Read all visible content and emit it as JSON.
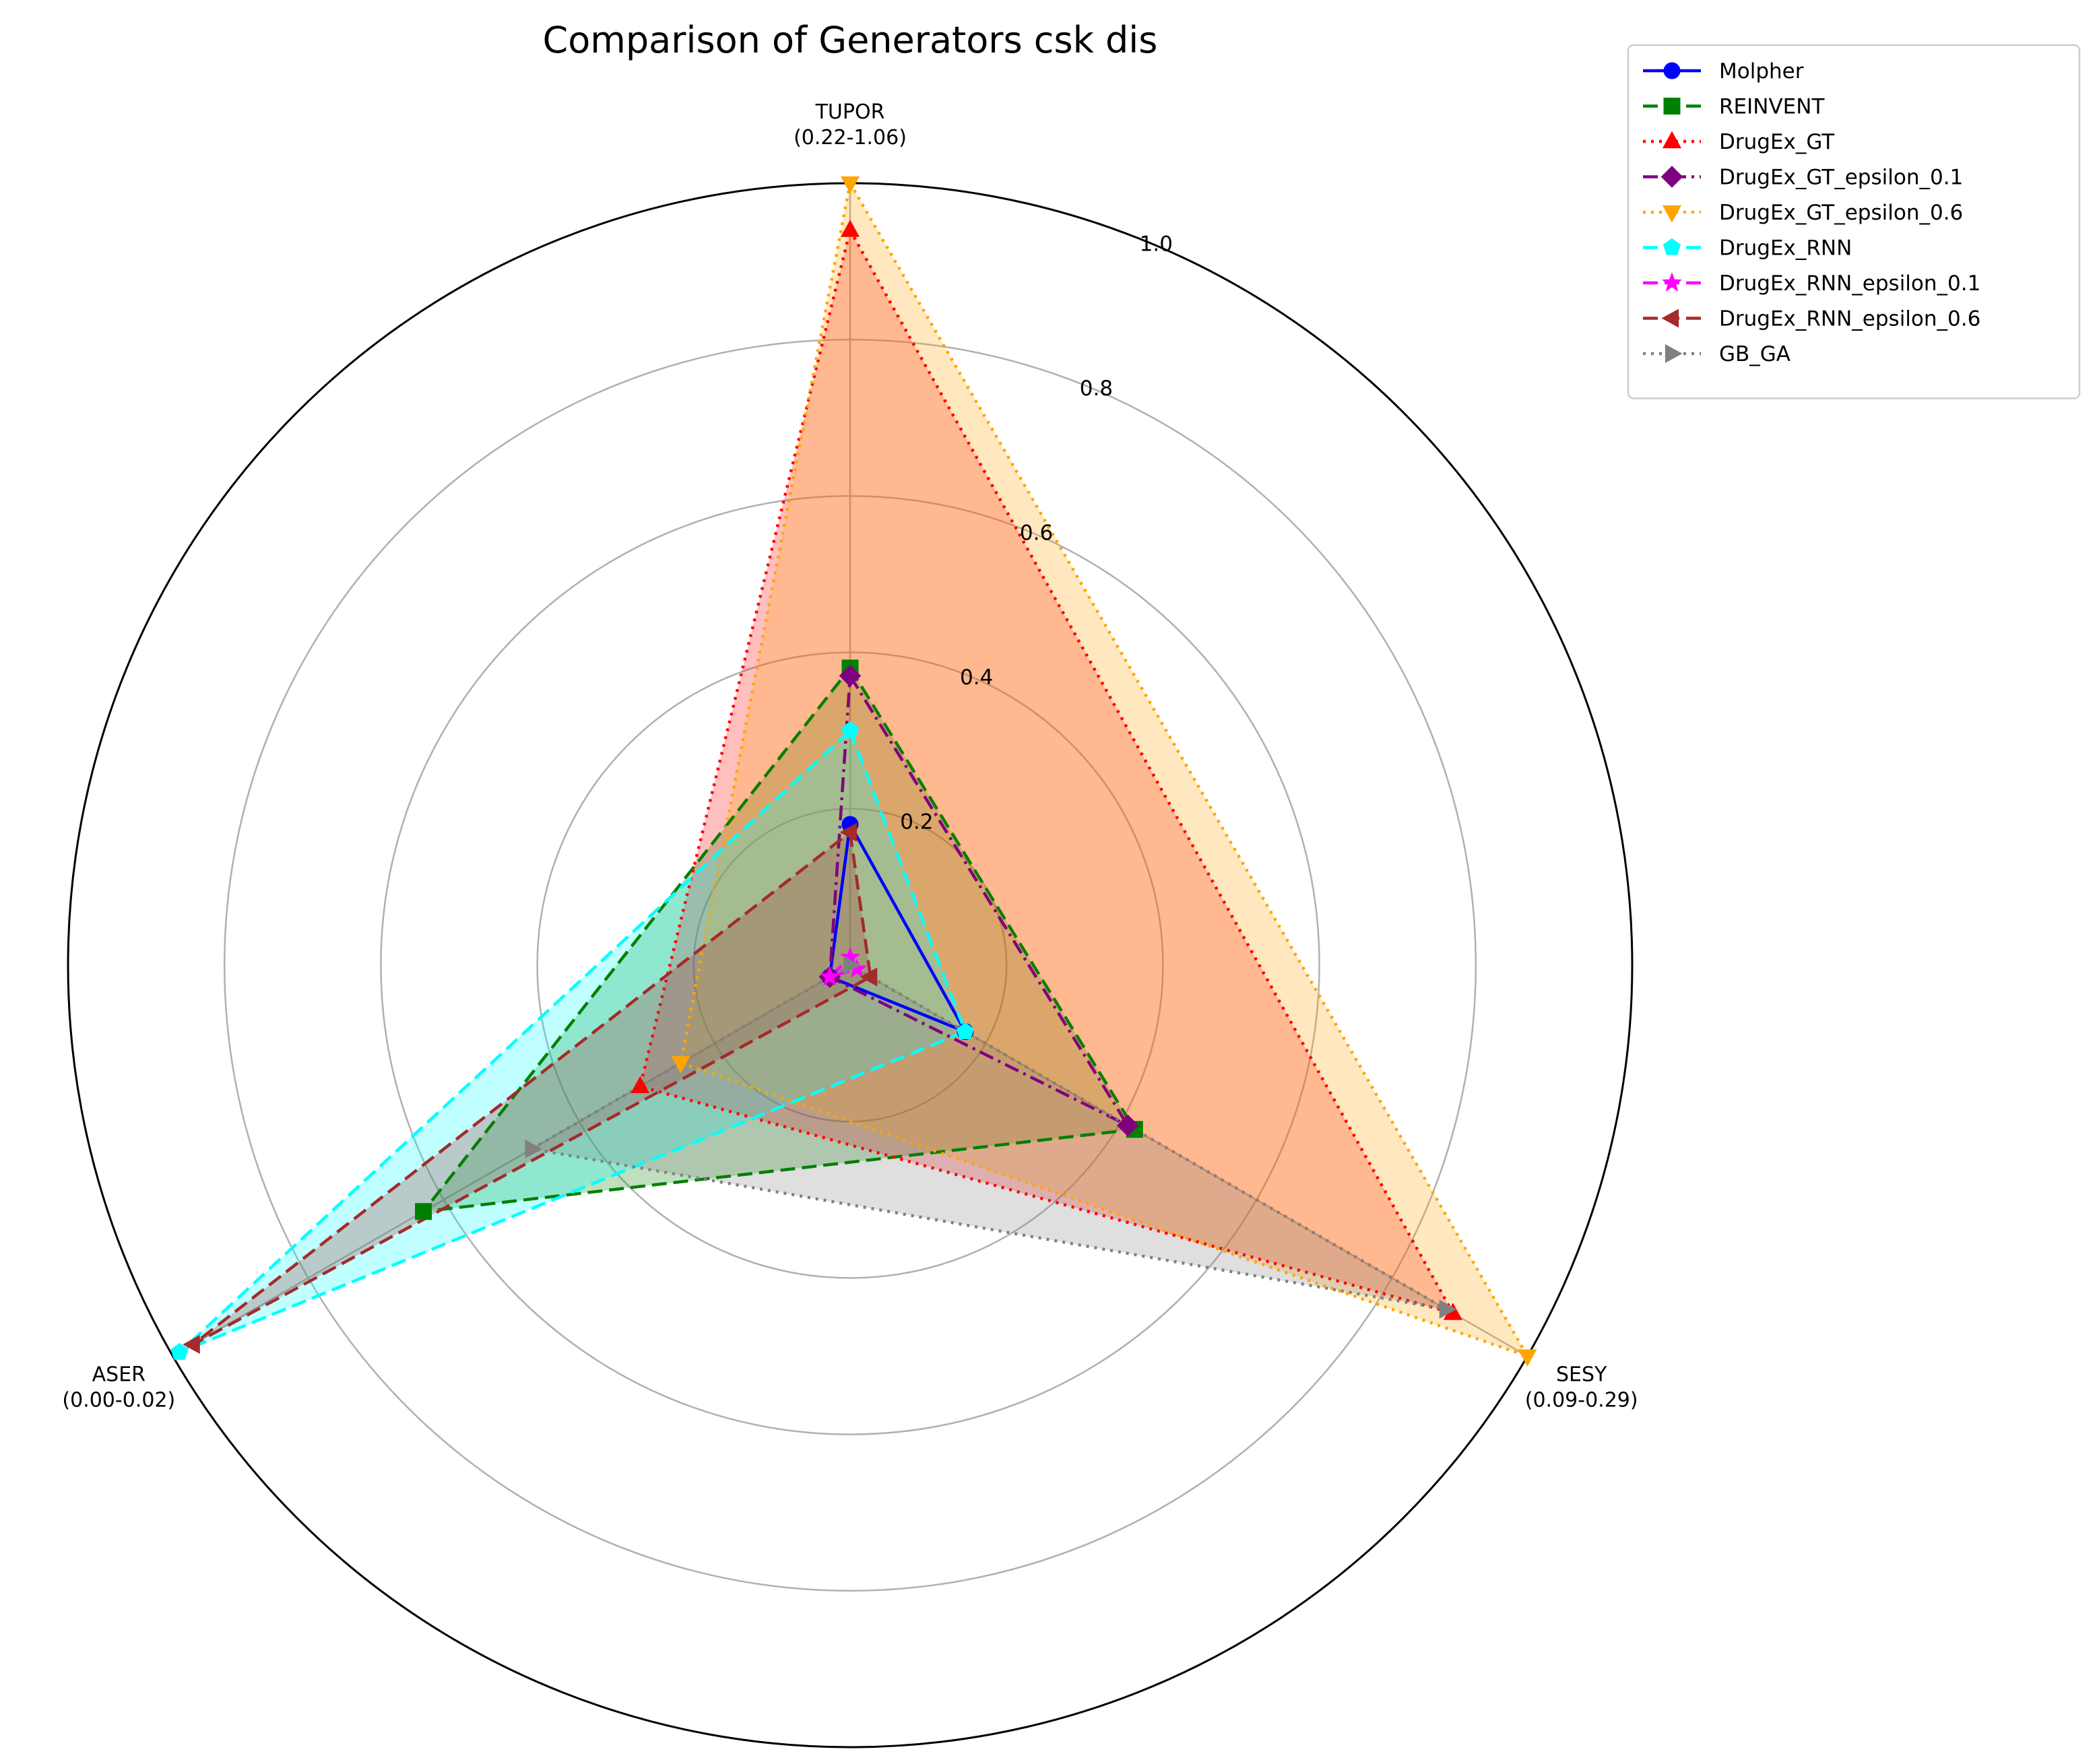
{
  "chart_data": {
    "type": "radar",
    "title": "Comparison of Generators  csk dis",
    "axes": [
      {
        "name": "TUPOR",
        "range": "(0.22-1.06)"
      },
      {
        "name": "SESY",
        "range": "(0.09-0.29)"
      },
      {
        "name": "ASER",
        "range": "(0.00-0.02)"
      }
    ],
    "radial_ticks": [
      "0.2",
      "0.4",
      "0.6",
      "0.8",
      "1.0"
    ],
    "rmax": 1.0,
    "grid": true,
    "legend_position": "upper-right-outside",
    "series": [
      {
        "name": "Molpher",
        "color": "#0000ff",
        "dash": "solid",
        "marker": "circle",
        "fill": false,
        "values": [
          0.18,
          0.17,
          0.03
        ]
      },
      {
        "name": "REINVENT",
        "color": "#008000",
        "dash": "dashed",
        "marker": "square",
        "fill": true,
        "values": [
          0.38,
          0.42,
          0.63
        ]
      },
      {
        "name": "DrugEx_GT",
        "color": "#ff0000",
        "dash": "dotted",
        "marker": "triangle-up",
        "fill": true,
        "values": [
          0.94,
          0.89,
          0.31
        ]
      },
      {
        "name": "DrugEx_GT_epsilon_0.1",
        "color": "#800080",
        "dash": "dashdot",
        "marker": "diamond",
        "fill": false,
        "values": [
          0.37,
          0.41,
          0.03
        ]
      },
      {
        "name": "DrugEx_GT_epsilon_0.6",
        "color": "#ffa500",
        "dash": "dotted",
        "marker": "triangle-down",
        "fill": true,
        "values": [
          1.0,
          1.0,
          0.25
        ]
      },
      {
        "name": "DrugEx_RNN",
        "color": "#00ffff",
        "dash": "dashed",
        "marker": "pentagon",
        "fill": true,
        "values": [
          0.3,
          0.17,
          0.99
        ]
      },
      {
        "name": "DrugEx_RNN_epsilon_0.1",
        "color": "#ff00ff",
        "dash": "dashed",
        "marker": "star",
        "fill": false,
        "values": [
          0.01,
          0.01,
          0.03
        ]
      },
      {
        "name": "DrugEx_RNN_epsilon_0.6",
        "color": "#a52a2a",
        "dash": "dashed",
        "marker": "triangle-left",
        "fill": true,
        "values": [
          0.17,
          0.03,
          0.97
        ]
      },
      {
        "name": "GB_GA",
        "color": "#808080",
        "dash": "dotted",
        "marker": "triangle-right",
        "fill": true,
        "values": [
          0.0,
          0.88,
          0.47
        ]
      }
    ]
  }
}
